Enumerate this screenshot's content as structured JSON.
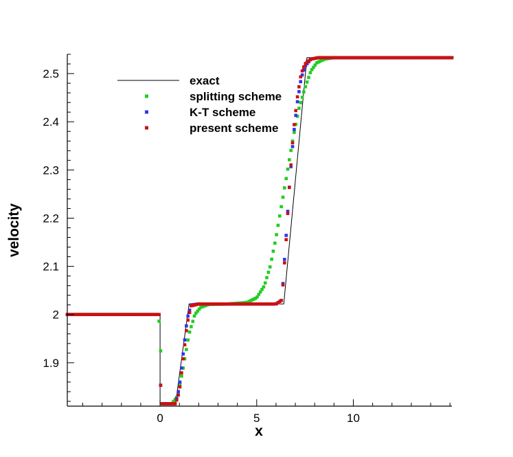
{
  "chart_data": {
    "type": "line",
    "xlabel": "x",
    "ylabel": "velocity",
    "xlim": [
      -4.8,
      15.1
    ],
    "ylim": [
      1.81,
      2.54
    ],
    "x_ticks": [
      0,
      5,
      10
    ],
    "x_tick_labels": [
      "0",
      "5",
      "10"
    ],
    "y_ticks": [
      1.9,
      2.0,
      2.1,
      2.2,
      2.3,
      2.4,
      2.5
    ],
    "y_tick_labels": [
      "1.9",
      "2",
      "2.1",
      "2.2",
      "2.3",
      "2.4",
      "2.5"
    ],
    "grid": false,
    "legend_position": "top-left",
    "series": [
      {
        "name": "exact",
        "style": "line",
        "color": "#000000",
        "x": [
          -4.8,
          0.0,
          0.0,
          0.8,
          1.5,
          6.4,
          7.6,
          15.1
        ],
        "y": [
          2.0,
          2.0,
          1.815,
          1.815,
          2.022,
          2.022,
          2.533,
          2.533
        ]
      },
      {
        "name": "splitting scheme",
        "style": "markers",
        "color": "#22cc22",
        "x": [
          -4.8,
          -0.1,
          0.0,
          0.1,
          0.6,
          0.9,
          1.2,
          1.5,
          1.8,
          2.1,
          2.5,
          3.5,
          4.5,
          5.0,
          5.4,
          5.7,
          6.0,
          6.3,
          6.6,
          6.9,
          7.2,
          7.5,
          7.8,
          8.1,
          8.5,
          9.0,
          15.1
        ],
        "y": [
          2.0,
          2.0,
          1.97,
          1.815,
          1.815,
          1.83,
          1.89,
          1.96,
          2.0,
          2.015,
          2.021,
          2.022,
          2.025,
          2.035,
          2.06,
          2.1,
          2.16,
          2.23,
          2.3,
          2.37,
          2.43,
          2.47,
          2.505,
          2.522,
          2.53,
          2.533,
          2.533
        ]
      },
      {
        "name": "K-T scheme",
        "style": "markers",
        "color": "#3333ee",
        "x": [
          -4.8,
          -0.05,
          0.05,
          0.8,
          1.0,
          1.2,
          1.4,
          1.6,
          2.0,
          6.0,
          6.3,
          6.5,
          6.7,
          6.9,
          7.1,
          7.3,
          7.5,
          7.8,
          8.2,
          15.1
        ],
        "y": [
          2.0,
          2.0,
          1.815,
          1.815,
          1.85,
          1.92,
          1.99,
          2.02,
          2.022,
          2.022,
          2.03,
          2.15,
          2.27,
          2.37,
          2.44,
          2.49,
          2.515,
          2.53,
          2.533,
          2.533
        ]
      },
      {
        "name": "present scheme",
        "style": "markers",
        "color": "#cc1111",
        "x": [
          -4.8,
          -0.05,
          0.05,
          0.8,
          1.0,
          1.2,
          1.4,
          1.6,
          2.0,
          6.0,
          6.3,
          6.5,
          6.7,
          6.9,
          7.1,
          7.3,
          7.5,
          7.8,
          8.2,
          15.1
        ],
        "y": [
          2.0,
          2.0,
          1.815,
          1.815,
          1.84,
          1.91,
          1.98,
          2.018,
          2.022,
          2.022,
          2.03,
          2.14,
          2.27,
          2.38,
          2.45,
          2.5,
          2.52,
          2.53,
          2.533,
          2.533
        ]
      }
    ]
  }
}
